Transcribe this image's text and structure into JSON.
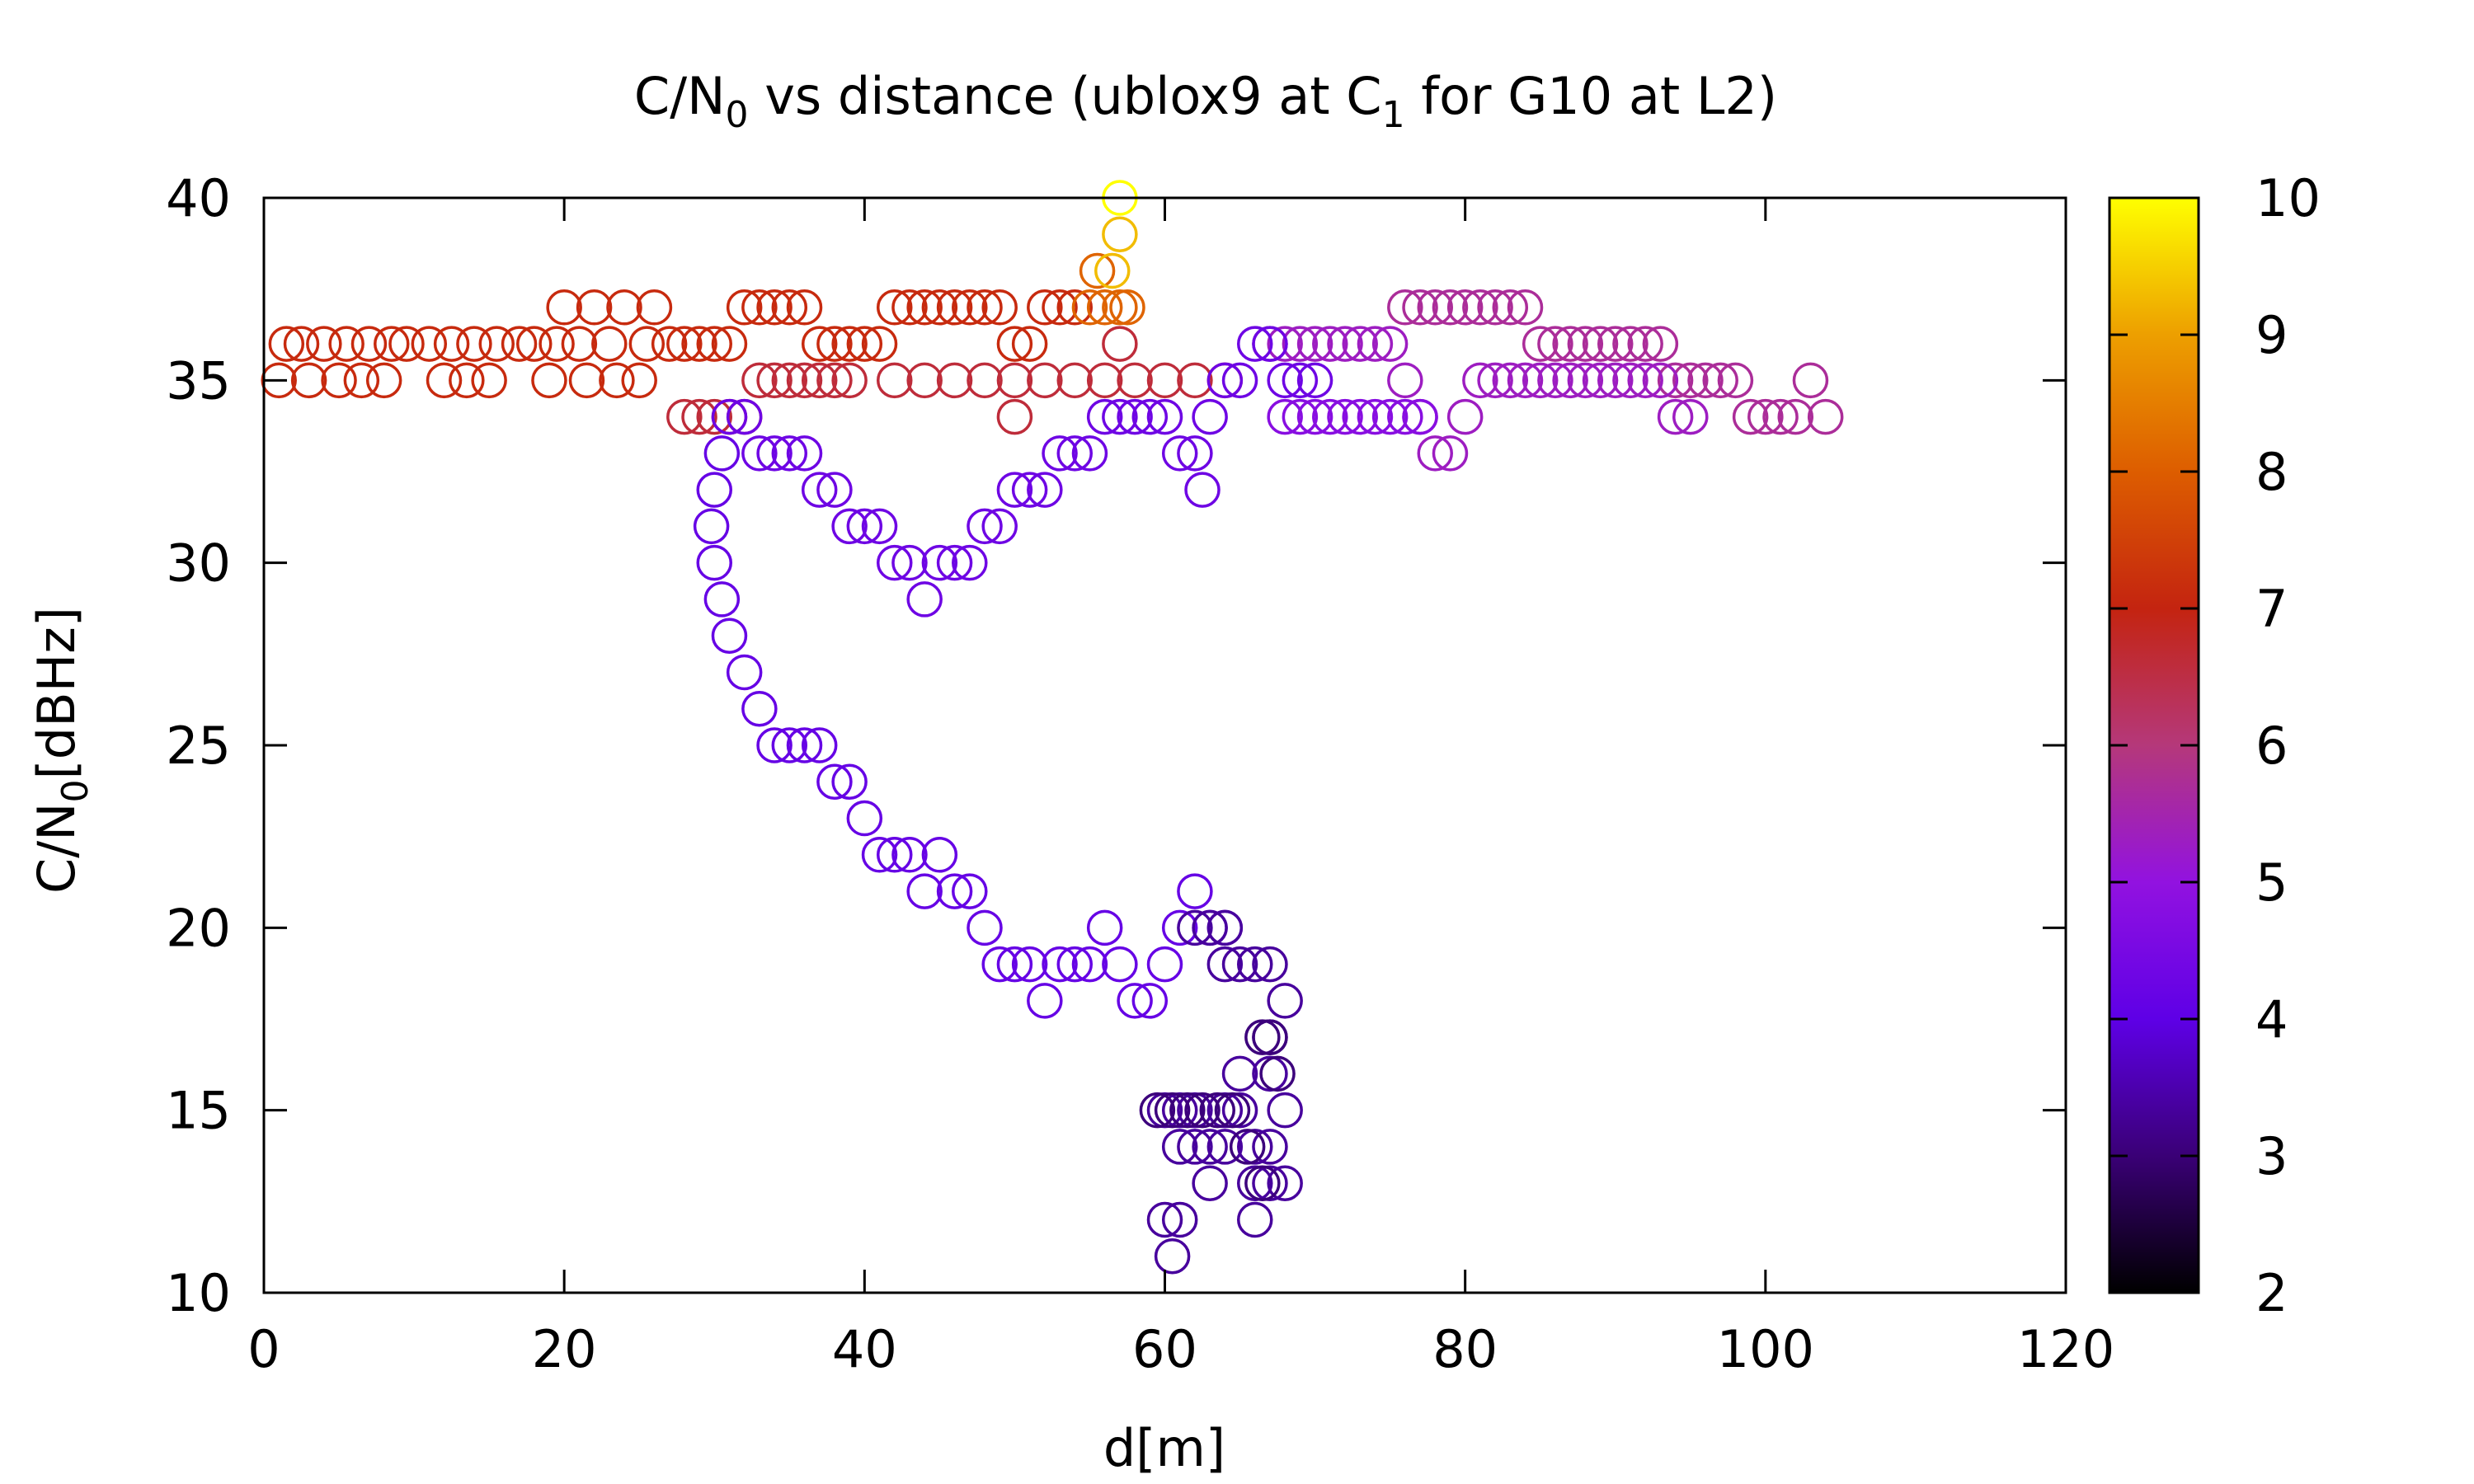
{
  "chart_data": {
    "type": "scatter",
    "title": {
      "main": "C/N",
      "sub0": "0",
      "mid": " vs distance (ublox9 at C",
      "sub1": "1",
      "end": " for G10 at L2)"
    },
    "xlabel": "d[m]",
    "ylabel": {
      "main": "C/N",
      "sub": "0",
      "end": "[dBHz]"
    },
    "xlim": [
      0,
      120
    ],
    "ylim": [
      10,
      40
    ],
    "xticks": [
      0,
      20,
      40,
      60,
      80,
      100,
      120
    ],
    "yticks": [
      10,
      15,
      20,
      25,
      30,
      35,
      40
    ],
    "colorbar": {
      "range": [
        2,
        10
      ],
      "ticks": [
        2,
        3,
        4,
        5,
        6,
        7,
        8,
        9,
        10
      ],
      "palette": "gnuplot-pm3d"
    },
    "marker": "open-circle",
    "grid": false,
    "series": [
      {
        "color_value": 7.1,
        "points": [
          [
            1,
            35
          ],
          [
            1.5,
            36
          ],
          [
            2.5,
            36
          ],
          [
            3,
            35
          ],
          [
            4,
            36
          ],
          [
            5,
            35
          ],
          [
            5.5,
            36
          ],
          [
            6.5,
            35
          ],
          [
            7,
            36
          ],
          [
            8,
            35
          ],
          [
            8.5,
            36
          ],
          [
            9.5,
            36
          ],
          [
            11,
            36
          ],
          [
            12,
            35
          ],
          [
            12.5,
            36
          ],
          [
            13.5,
            35
          ],
          [
            14,
            36
          ],
          [
            15,
            35
          ],
          [
            15.5,
            36
          ],
          [
            17,
            36
          ],
          [
            18,
            36
          ],
          [
            19,
            35
          ],
          [
            19.5,
            36
          ],
          [
            20,
            37
          ],
          [
            21,
            36
          ],
          [
            21.5,
            35
          ],
          [
            22,
            37
          ],
          [
            23,
            36
          ],
          [
            23.5,
            35
          ],
          [
            24,
            37
          ],
          [
            25,
            35
          ],
          [
            25.5,
            36
          ],
          [
            26,
            37
          ],
          [
            27,
            36
          ],
          [
            28,
            36
          ],
          [
            29,
            36
          ],
          [
            30,
            36
          ],
          [
            31,
            36
          ],
          [
            32,
            37
          ],
          [
            33,
            37
          ],
          [
            34,
            37
          ],
          [
            35,
            37
          ],
          [
            36,
            37
          ],
          [
            37,
            36
          ],
          [
            38,
            36
          ],
          [
            39,
            36
          ],
          [
            40,
            36
          ],
          [
            41,
            36
          ],
          [
            42,
            37
          ],
          [
            43,
            37
          ],
          [
            44,
            37
          ],
          [
            45,
            37
          ],
          [
            46,
            37
          ],
          [
            47,
            37
          ],
          [
            48,
            37
          ],
          [
            49,
            37
          ],
          [
            50,
            36
          ],
          [
            51,
            36
          ],
          [
            52,
            37
          ],
          [
            53,
            37
          ],
          [
            54,
            37
          ]
        ]
      },
      {
        "color_value": 6.6,
        "points": [
          [
            28,
            34
          ],
          [
            29,
            34
          ],
          [
            30,
            34
          ],
          [
            31,
            34
          ],
          [
            32,
            34
          ],
          [
            33,
            35
          ],
          [
            34,
            35
          ],
          [
            35,
            35
          ],
          [
            36,
            35
          ],
          [
            37,
            35
          ],
          [
            38,
            35
          ],
          [
            39,
            35
          ],
          [
            42,
            35
          ],
          [
            44,
            35
          ],
          [
            46,
            35
          ],
          [
            48,
            35
          ],
          [
            50,
            34
          ],
          [
            50,
            35
          ],
          [
            52,
            35
          ],
          [
            54,
            35
          ],
          [
            56,
            35
          ],
          [
            57,
            36
          ],
          [
            58,
            35
          ],
          [
            60,
            35
          ],
          [
            62,
            35
          ],
          [
            64,
            35
          ]
        ]
      },
      {
        "color_value": 8.1,
        "points": [
          [
            55,
            37
          ],
          [
            55.5,
            38
          ],
          [
            56,
            37
          ],
          [
            57,
            37
          ],
          [
            57.5,
            37
          ]
        ]
      },
      {
        "color_value": 9.3,
        "points": [
          [
            56.5,
            38
          ],
          [
            57,
            39
          ]
        ]
      },
      {
        "color_value": 10,
        "points": [
          [
            57,
            40
          ]
        ]
      },
      {
        "color_value": 5.7,
        "points": [
          [
            76,
            37
          ],
          [
            77,
            37
          ],
          [
            78,
            37
          ],
          [
            79,
            37
          ],
          [
            80,
            37
          ],
          [
            81,
            37
          ],
          [
            82,
            37
          ],
          [
            83,
            37
          ],
          [
            84,
            37
          ],
          [
            85,
            36
          ],
          [
            86,
            36
          ],
          [
            87,
            36
          ],
          [
            88,
            36
          ],
          [
            89,
            36
          ],
          [
            90,
            36
          ],
          [
            91,
            36
          ],
          [
            92,
            36
          ],
          [
            93,
            36
          ],
          [
            94,
            35
          ],
          [
            95,
            35
          ],
          [
            96,
            35
          ],
          [
            97,
            35
          ],
          [
            98,
            35
          ],
          [
            99,
            34
          ],
          [
            100,
            34
          ],
          [
            101,
            34
          ],
          [
            102,
            34
          ],
          [
            103,
            35
          ],
          [
            104,
            34
          ]
        ]
      },
      {
        "color_value": 5.3,
        "points": [
          [
            67,
            36
          ],
          [
            68,
            36
          ],
          [
            69,
            36
          ],
          [
            70,
            36
          ],
          [
            71,
            36
          ],
          [
            72,
            36
          ],
          [
            73,
            36
          ],
          [
            74,
            36
          ],
          [
            75,
            36
          ],
          [
            76,
            35
          ],
          [
            77,
            34
          ],
          [
            78,
            33
          ],
          [
            79,
            33
          ],
          [
            80,
            34
          ],
          [
            81,
            35
          ],
          [
            82,
            35
          ],
          [
            83,
            35
          ],
          [
            84,
            35
          ],
          [
            85,
            35
          ],
          [
            86,
            35
          ],
          [
            87,
            35
          ],
          [
            88,
            35
          ],
          [
            89,
            35
          ],
          [
            90,
            35
          ],
          [
            91,
            35
          ],
          [
            92,
            35
          ],
          [
            93,
            35
          ],
          [
            94,
            34
          ],
          [
            95,
            34
          ]
        ]
      },
      {
        "color_value": 4.8,
        "points": [
          [
            68,
            34
          ],
          [
            69,
            34
          ],
          [
            70,
            34
          ],
          [
            71,
            34
          ],
          [
            72,
            34
          ],
          [
            73,
            34
          ],
          [
            74,
            34
          ],
          [
            75,
            34
          ],
          [
            76,
            34
          ],
          [
            77,
            34
          ]
        ]
      },
      {
        "color_value": 4.3,
        "points": [
          [
            31,
            34
          ],
          [
            32,
            34
          ],
          [
            33,
            33
          ],
          [
            34,
            33
          ],
          [
            35,
            33
          ],
          [
            36,
            33
          ],
          [
            37,
            32
          ],
          [
            38,
            32
          ],
          [
            39,
            31
          ],
          [
            40,
            31
          ],
          [
            41,
            31
          ],
          [
            42,
            30
          ],
          [
            43,
            30
          ],
          [
            44,
            29
          ],
          [
            45,
            30
          ],
          [
            46,
            30
          ],
          [
            47,
            30
          ],
          [
            48,
            31
          ],
          [
            49,
            31
          ],
          [
            50,
            32
          ],
          [
            51,
            32
          ],
          [
            52,
            32
          ],
          [
            53,
            33
          ],
          [
            54,
            33
          ],
          [
            55,
            33
          ],
          [
            56,
            34
          ],
          [
            57,
            34
          ],
          [
            58,
            34
          ],
          [
            59,
            34
          ],
          [
            60,
            34
          ],
          [
            61,
            33
          ],
          [
            62,
            33
          ],
          [
            62.5,
            32
          ],
          [
            63,
            34
          ],
          [
            64,
            35
          ],
          [
            65,
            35
          ],
          [
            66,
            36
          ],
          [
            67,
            36
          ],
          [
            68,
            35
          ],
          [
            69,
            35
          ],
          [
            70,
            35
          ]
        ]
      },
      {
        "color_value": 4.15,
        "points": [
          [
            30.5,
            33
          ],
          [
            30,
            32
          ],
          [
            29.8,
            31
          ],
          [
            30,
            30
          ],
          [
            30.5,
            29
          ],
          [
            31,
            28
          ],
          [
            32,
            27
          ],
          [
            33,
            26
          ],
          [
            34,
            25
          ],
          [
            35,
            25
          ],
          [
            36,
            25
          ],
          [
            37,
            25
          ],
          [
            38,
            24
          ],
          [
            39,
            24
          ],
          [
            40,
            23
          ],
          [
            41,
            22
          ],
          [
            42,
            22
          ],
          [
            43,
            22
          ],
          [
            44,
            21
          ],
          [
            45,
            22
          ],
          [
            46,
            21
          ],
          [
            47,
            21
          ],
          [
            48,
            20
          ],
          [
            49,
            19
          ],
          [
            50,
            19
          ],
          [
            51,
            19
          ],
          [
            52,
            18
          ],
          [
            53,
            19
          ],
          [
            54,
            19
          ],
          [
            55,
            19
          ],
          [
            56,
            20
          ],
          [
            57,
            19
          ],
          [
            58,
            18
          ],
          [
            59,
            18
          ],
          [
            60,
            19
          ],
          [
            61,
            20
          ],
          [
            62,
            21
          ],
          [
            63,
            20
          ],
          [
            64,
            20
          ]
        ]
      },
      {
        "color_value": 3.35,
        "points": [
          [
            62,
            20
          ],
          [
            63,
            20
          ],
          [
            64,
            20
          ],
          [
            64,
            19
          ],
          [
            65,
            19
          ],
          [
            66,
            19
          ],
          [
            67,
            19
          ],
          [
            68,
            18
          ],
          [
            67,
            17
          ],
          [
            67,
            16
          ],
          [
            68,
            15
          ],
          [
            67,
            14
          ],
          [
            68,
            13
          ],
          [
            67,
            13
          ],
          [
            66,
            12
          ],
          [
            66,
            13
          ],
          [
            66,
            14
          ],
          [
            65,
            15
          ],
          [
            65,
            16
          ],
          [
            64,
            15
          ],
          [
            64,
            14
          ],
          [
            63,
            13
          ],
          [
            63,
            14
          ],
          [
            62,
            15
          ],
          [
            62,
            14
          ],
          [
            61,
            15
          ],
          [
            61,
            14
          ],
          [
            60,
            15
          ],
          [
            60,
            12
          ],
          [
            61,
            12
          ],
          [
            60.5,
            11
          ]
        ]
      },
      {
        "color_value": 3.05,
        "points": [
          [
            59.5,
            15
          ],
          [
            60.5,
            15
          ],
          [
            61.5,
            15
          ],
          [
            62.5,
            15
          ],
          [
            63.5,
            15
          ],
          [
            64.5,
            15
          ],
          [
            65.5,
            14
          ],
          [
            66.5,
            13
          ],
          [
            67,
            17
          ],
          [
            67.5,
            16
          ],
          [
            66.5,
            17
          ]
        ]
      }
    ]
  }
}
